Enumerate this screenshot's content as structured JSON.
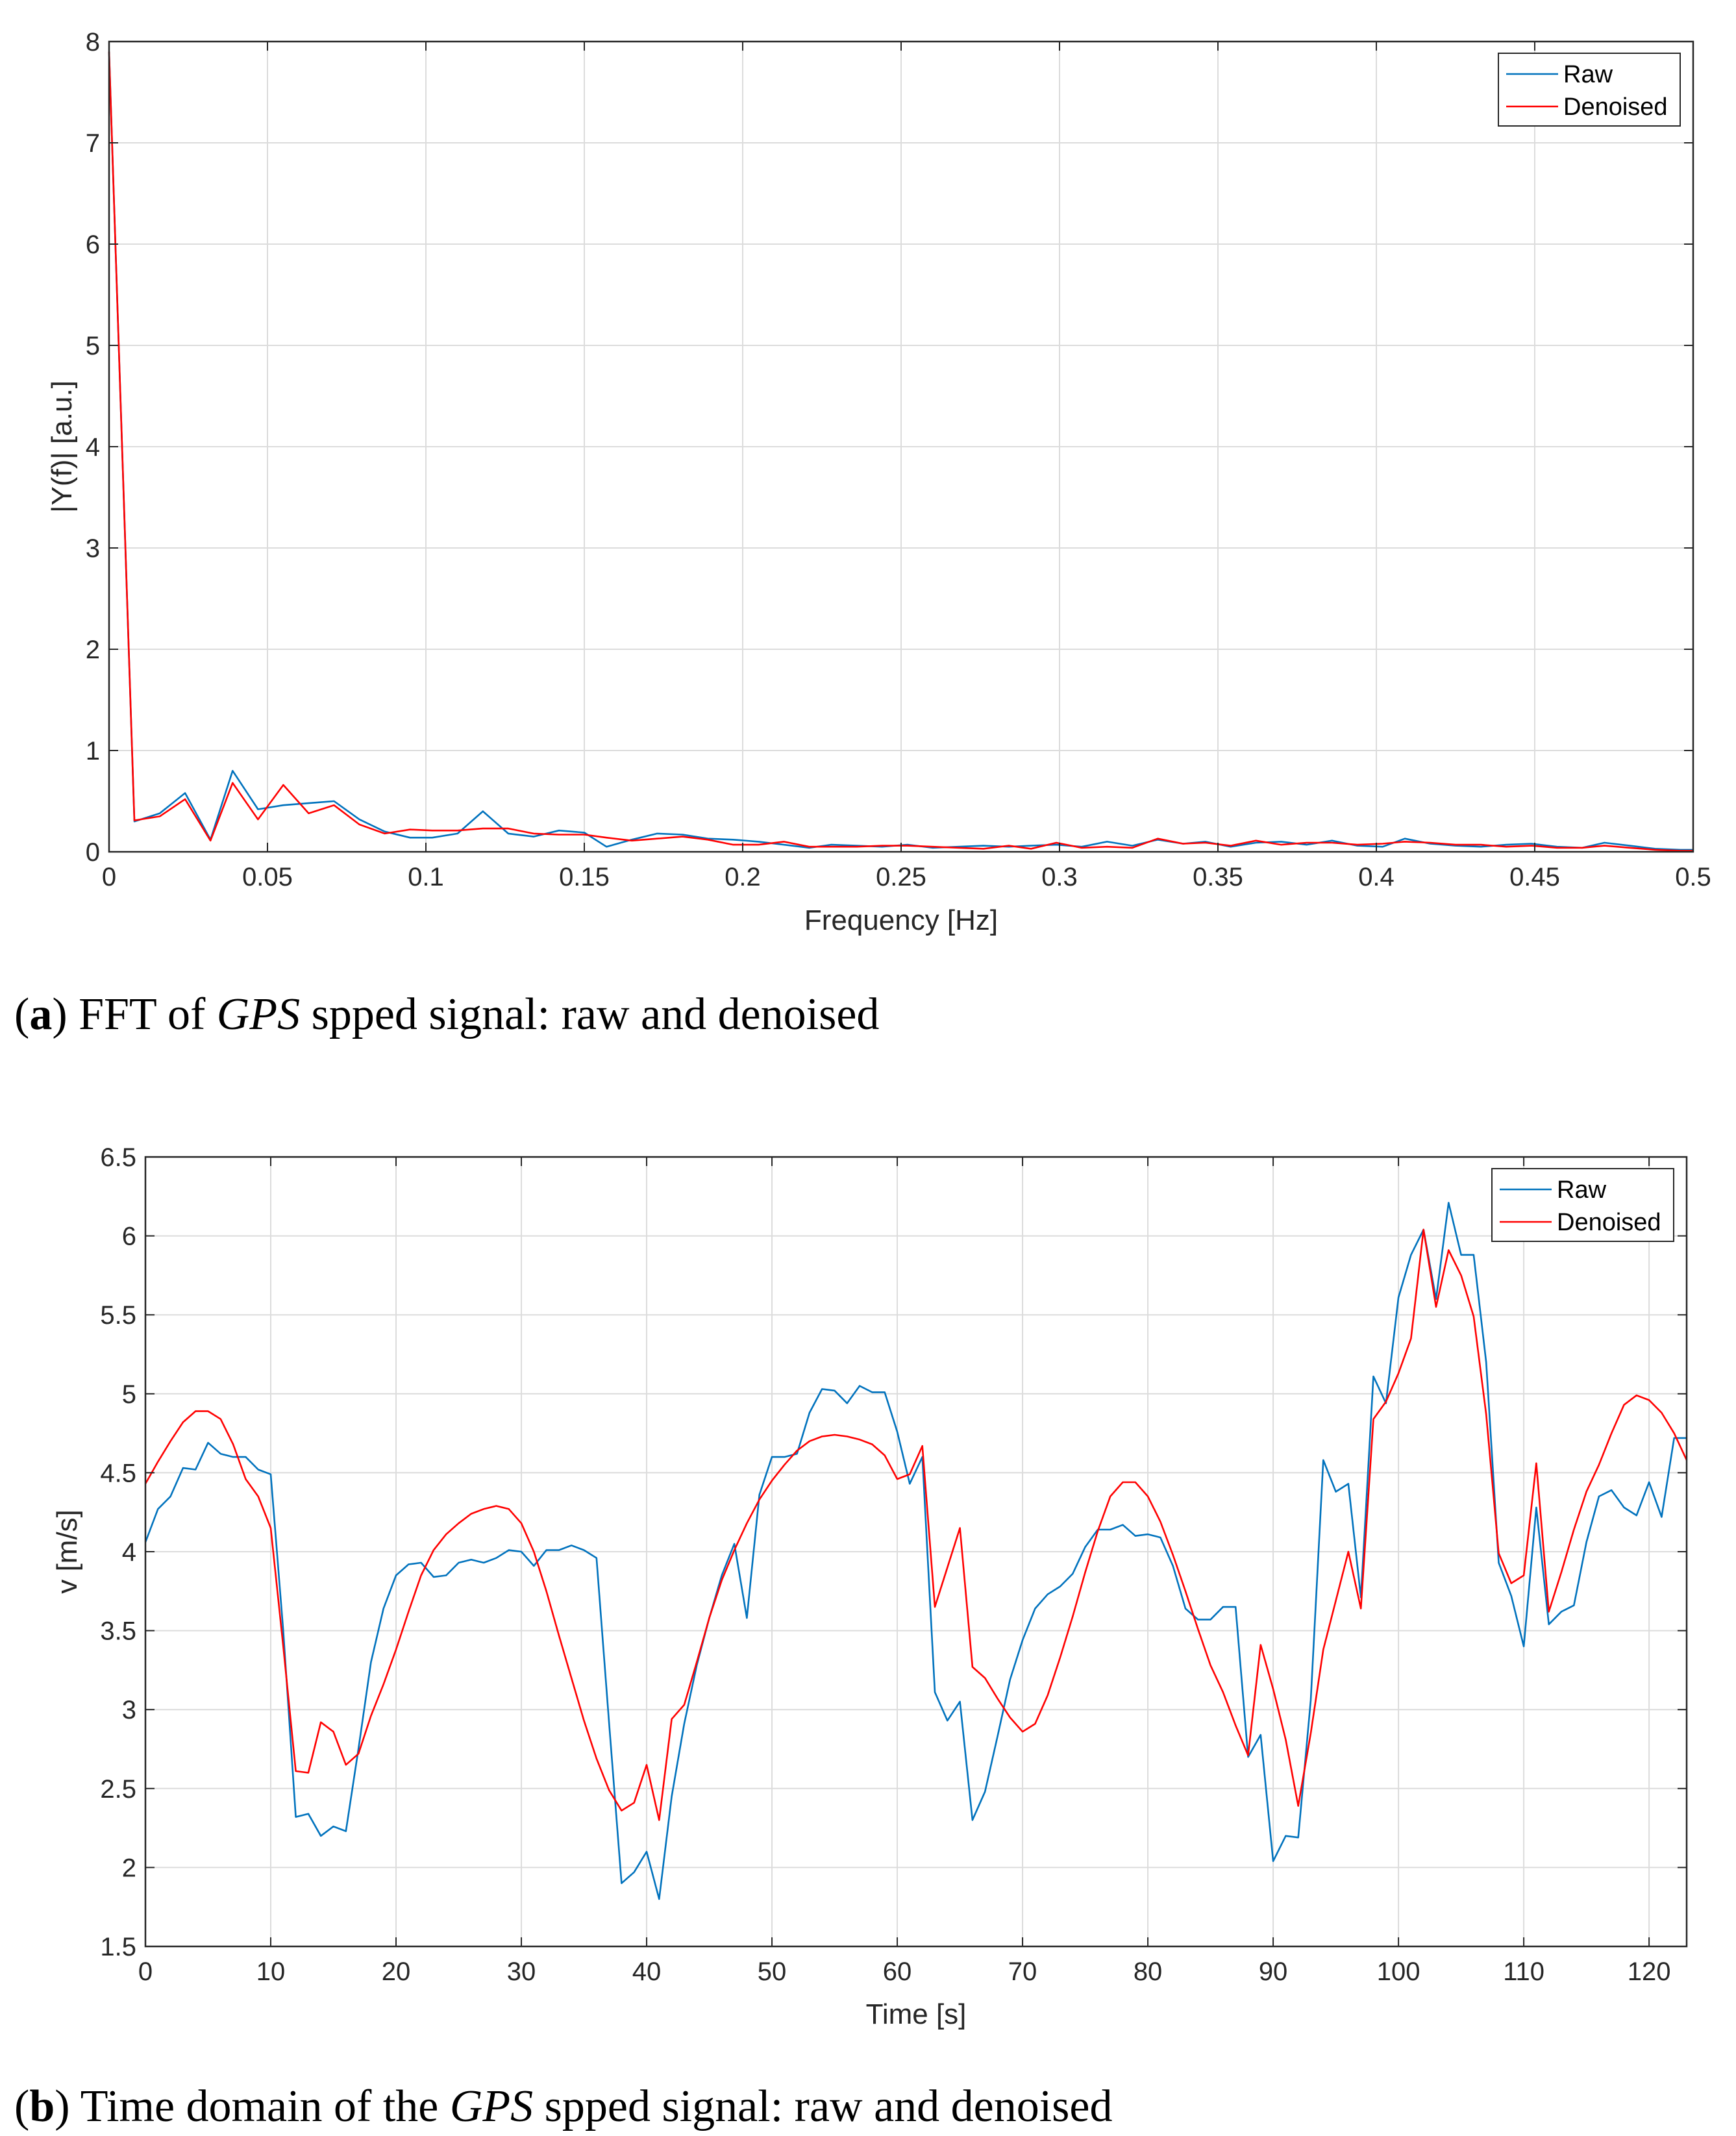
{
  "chart_data": [
    {
      "type": "line",
      "caption": {
        "label": "a",
        "text_before": " FFT of ",
        "italic": "GPS",
        "text_after": " spped signal: raw and denoised"
      },
      "xlabel": "Frequency [Hz]",
      "ylabel": "|Y(f)| [a.u.]",
      "xlim": [
        0,
        0.5
      ],
      "ylim": [
        0,
        8
      ],
      "xticks": [
        0,
        0.05,
        0.1,
        0.15,
        0.2,
        0.25,
        0.3,
        0.35,
        0.4,
        0.45,
        0.5
      ],
      "xticklabels": [
        "0",
        "0.05",
        "0.1",
        "0.15",
        "0.2",
        "0.25",
        "0.3",
        "0.35",
        "0.4",
        "0.45",
        "0.5"
      ],
      "yticks": [
        0,
        1,
        2,
        3,
        4,
        5,
        6,
        7,
        8
      ],
      "yticklabels": [
        "0",
        "1",
        "2",
        "3",
        "4",
        "5",
        "6",
        "7",
        "8"
      ],
      "grid": true,
      "legend": "top-right",
      "series": [
        {
          "name": "Raw",
          "color": "#0072bd",
          "x": [
            0,
            0.008,
            0.016,
            0.024,
            0.032,
            0.039,
            0.047,
            0.055,
            0.063,
            0.071,
            0.079,
            0.087,
            0.095,
            0.102,
            0.11,
            0.118,
            0.126,
            0.134,
            0.142,
            0.15,
            0.157,
            0.165,
            0.173,
            0.181,
            0.189,
            0.197,
            0.205,
            0.213,
            0.221,
            0.228,
            0.236,
            0.244,
            0.252,
            0.26,
            0.268,
            0.276,
            0.284,
            0.291,
            0.299,
            0.307,
            0.315,
            0.323,
            0.331,
            0.339,
            0.346,
            0.354,
            0.362,
            0.37,
            0.378,
            0.386,
            0.394,
            0.402,
            0.409,
            0.417,
            0.425,
            0.433,
            0.441,
            0.449,
            0.457,
            0.465,
            0.472,
            0.48,
            0.488,
            0.496,
            0.5
          ],
          "y": [
            7.9,
            0.3,
            0.38,
            0.58,
            0.12,
            0.8,
            0.42,
            0.46,
            0.48,
            0.5,
            0.32,
            0.2,
            0.14,
            0.14,
            0.18,
            0.4,
            0.18,
            0.15,
            0.21,
            0.19,
            0.05,
            0.12,
            0.18,
            0.17,
            0.13,
            0.12,
            0.1,
            0.07,
            0.04,
            0.07,
            0.06,
            0.05,
            0.07,
            0.04,
            0.05,
            0.06,
            0.05,
            0.06,
            0.07,
            0.05,
            0.1,
            0.06,
            0.12,
            0.08,
            0.1,
            0.05,
            0.09,
            0.1,
            0.07,
            0.11,
            0.06,
            0.05,
            0.13,
            0.08,
            0.06,
            0.05,
            0.07,
            0.08,
            0.05,
            0.04,
            0.09,
            0.06,
            0.03,
            0.02,
            0.02
          ]
        },
        {
          "name": "Denoised",
          "color": "#ff0000",
          "x": [
            0,
            0.008,
            0.016,
            0.024,
            0.032,
            0.039,
            0.047,
            0.055,
            0.063,
            0.071,
            0.079,
            0.087,
            0.095,
            0.102,
            0.11,
            0.118,
            0.126,
            0.134,
            0.142,
            0.15,
            0.157,
            0.165,
            0.173,
            0.181,
            0.189,
            0.197,
            0.205,
            0.213,
            0.221,
            0.228,
            0.236,
            0.244,
            0.252,
            0.26,
            0.268,
            0.276,
            0.284,
            0.291,
            0.299,
            0.307,
            0.315,
            0.323,
            0.331,
            0.339,
            0.346,
            0.354,
            0.362,
            0.37,
            0.378,
            0.386,
            0.394,
            0.402,
            0.409,
            0.417,
            0.425,
            0.433,
            0.441,
            0.449,
            0.457,
            0.465,
            0.472,
            0.48,
            0.488,
            0.496,
            0.5
          ],
          "y": [
            7.9,
            0.31,
            0.35,
            0.52,
            0.11,
            0.68,
            0.32,
            0.66,
            0.38,
            0.46,
            0.27,
            0.18,
            0.22,
            0.21,
            0.21,
            0.23,
            0.23,
            0.18,
            0.17,
            0.17,
            0.14,
            0.11,
            0.13,
            0.15,
            0.12,
            0.07,
            0.07,
            0.1,
            0.05,
            0.05,
            0.05,
            0.06,
            0.06,
            0.05,
            0.04,
            0.03,
            0.06,
            0.03,
            0.09,
            0.04,
            0.05,
            0.04,
            0.13,
            0.08,
            0.09,
            0.06,
            0.11,
            0.07,
            0.09,
            0.09,
            0.07,
            0.08,
            0.1,
            0.09,
            0.07,
            0.07,
            0.05,
            0.06,
            0.04,
            0.04,
            0.06,
            0.04,
            0.02,
            0.01,
            0.01
          ]
        }
      ]
    },
    {
      "type": "line",
      "caption": {
        "label": "b",
        "text_before": " Time domain of the ",
        "italic": "GPS",
        "text_after": " spped signal: raw and denoised"
      },
      "xlabel": "Time [s]",
      "ylabel": "v [m/s]",
      "xlim": [
        0,
        123
      ],
      "ylim": [
        1.5,
        6.5
      ],
      "xticks": [
        0,
        10,
        20,
        30,
        40,
        50,
        60,
        70,
        80,
        90,
        100,
        110,
        120
      ],
      "xticklabels": [
        "0",
        "10",
        "20",
        "30",
        "40",
        "50",
        "60",
        "70",
        "80",
        "90",
        "100",
        "110",
        "120"
      ],
      "yticks": [
        1.5,
        2,
        2.5,
        3,
        3.5,
        4,
        4.5,
        5,
        5.5,
        6,
        6.5
      ],
      "yticklabels": [
        "1.5",
        "2",
        "2.5",
        "3",
        "3.5",
        "4",
        "4.5",
        "5",
        "5.5",
        "6",
        "6.5"
      ],
      "grid": true,
      "legend": "top-right",
      "series": [
        {
          "name": "Raw",
          "color": "#0072bd",
          "x": [
            0,
            1,
            2,
            3,
            4,
            5,
            6,
            7,
            8,
            9,
            10,
            11,
            12,
            13,
            14,
            15,
            16,
            17,
            18,
            19,
            20,
            21,
            22,
            23,
            24,
            25,
            26,
            27,
            28,
            29,
            30,
            31,
            32,
            33,
            34,
            35,
            36,
            37,
            38,
            39,
            40,
            41,
            42,
            43,
            44,
            45,
            46,
            47,
            48,
            49,
            50,
            51,
            52,
            53,
            54,
            55,
            56,
            57,
            58,
            59,
            60,
            61,
            62,
            63,
            64,
            65,
            66,
            67,
            68,
            69,
            70,
            71,
            72,
            73,
            74,
            75,
            76,
            77,
            78,
            79,
            80,
            81,
            82,
            83,
            84,
            85,
            86,
            87,
            88,
            89,
            90,
            91,
            92,
            93,
            94,
            95,
            96,
            97,
            98,
            99,
            100,
            101,
            102,
            103,
            104,
            105,
            106,
            107,
            108,
            109,
            110,
            111,
            112,
            113,
            114,
            115,
            116,
            117,
            118,
            119,
            120,
            121,
            122,
            123
          ],
          "y": [
            4.06,
            4.27,
            4.35,
            4.53,
            4.52,
            4.69,
            4.62,
            4.6,
            4.6,
            4.52,
            4.49,
            3.5,
            2.32,
            2.34,
            2.2,
            2.26,
            2.23,
            2.75,
            3.3,
            3.64,
            3.85,
            3.92,
            3.93,
            3.84,
            3.85,
            3.93,
            3.95,
            3.93,
            3.96,
            4.01,
            4.0,
            3.91,
            4.01,
            4.01,
            4.04,
            4.01,
            3.96,
            2.92,
            1.9,
            1.97,
            2.1,
            1.8,
            2.45,
            2.91,
            3.28,
            3.58,
            3.85,
            4.05,
            3.58,
            4.36,
            4.6,
            4.6,
            4.62,
            4.88,
            5.03,
            5.02,
            4.94,
            5.05,
            5.01,
            5.01,
            4.76,
            4.43,
            4.6,
            3.11,
            2.93,
            3.05,
            2.3,
            2.48,
            2.83,
            3.19,
            3.44,
            3.64,
            3.73,
            3.78,
            3.86,
            4.03,
            4.14,
            4.14,
            4.17,
            4.1,
            4.11,
            4.09,
            3.91,
            3.64,
            3.57,
            3.57,
            3.65,
            3.65,
            2.7,
            2.84,
            2.04,
            2.2,
            2.19,
            3.06,
            4.58,
            4.38,
            4.43,
            3.71,
            5.11,
            4.94,
            5.61,
            5.88,
            6.04,
            5.6,
            6.21,
            5.88,
            5.88,
            5.2,
            3.93,
            3.72,
            3.4,
            4.28,
            3.54,
            3.62,
            3.66,
            4.06,
            4.35,
            4.39,
            4.28,
            4.23,
            4.44,
            4.22,
            4.72,
            4.72
          ]
        },
        {
          "name": "Denoised",
          "color": "#ff0000",
          "x": [
            0,
            1,
            2,
            3,
            4,
            5,
            6,
            7,
            8,
            9,
            10,
            11,
            12,
            13,
            14,
            15,
            16,
            17,
            18,
            19,
            20,
            21,
            22,
            23,
            24,
            25,
            26,
            27,
            28,
            29,
            30,
            31,
            32,
            33,
            34,
            35,
            36,
            37,
            38,
            39,
            40,
            41,
            42,
            43,
            44,
            45,
            46,
            47,
            48,
            49,
            50,
            51,
            52,
            53,
            54,
            55,
            56,
            57,
            58,
            59,
            60,
            61,
            62,
            63,
            64,
            65,
            66,
            67,
            68,
            69,
            70,
            71,
            72,
            73,
            74,
            75,
            76,
            77,
            78,
            79,
            80,
            81,
            82,
            83,
            84,
            85,
            86,
            87,
            88,
            89,
            90,
            91,
            92,
            93,
            94,
            95,
            96,
            97,
            98,
            99,
            100,
            101,
            102,
            103,
            104,
            105,
            106,
            107,
            108,
            109,
            110,
            111,
            112,
            113,
            114,
            115,
            116,
            117,
            118,
            119,
            120,
            121,
            122,
            123
          ],
          "y": [
            4.43,
            4.57,
            4.7,
            4.82,
            4.89,
            4.89,
            4.84,
            4.68,
            4.46,
            4.35,
            4.15,
            3.4,
            2.61,
            2.6,
            2.92,
            2.86,
            2.65,
            2.72,
            2.96,
            3.16,
            3.38,
            3.62,
            3.85,
            4.01,
            4.11,
            4.18,
            4.24,
            4.27,
            4.29,
            4.27,
            4.18,
            4.0,
            3.75,
            3.47,
            3.2,
            2.93,
            2.69,
            2.49,
            2.36,
            2.41,
            2.65,
            2.3,
            2.94,
            3.03,
            3.3,
            3.58,
            3.82,
            4.01,
            4.18,
            4.33,
            4.45,
            4.55,
            4.64,
            4.7,
            4.73,
            4.74,
            4.73,
            4.71,
            4.68,
            4.61,
            4.46,
            4.49,
            4.67,
            3.65,
            3.9,
            4.15,
            3.27,
            3.2,
            3.07,
            2.95,
            2.86,
            2.91,
            3.09,
            3.33,
            3.59,
            3.87,
            4.13,
            4.35,
            4.44,
            4.44,
            4.35,
            4.19,
            3.98,
            3.75,
            3.51,
            3.28,
            3.11,
            2.9,
            2.71,
            3.41,
            3.13,
            2.81,
            2.39,
            2.85,
            3.38,
            3.69,
            4.0,
            3.64,
            4.84,
            4.95,
            5.13,
            5.35,
            6.04,
            5.55,
            5.91,
            5.75,
            5.49,
            4.87,
            3.99,
            3.8,
            3.85,
            4.56,
            3.62,
            3.87,
            4.14,
            4.38,
            4.55,
            4.75,
            4.93,
            4.99,
            4.96,
            4.88,
            4.75,
            4.58
          ]
        }
      ]
    }
  ]
}
